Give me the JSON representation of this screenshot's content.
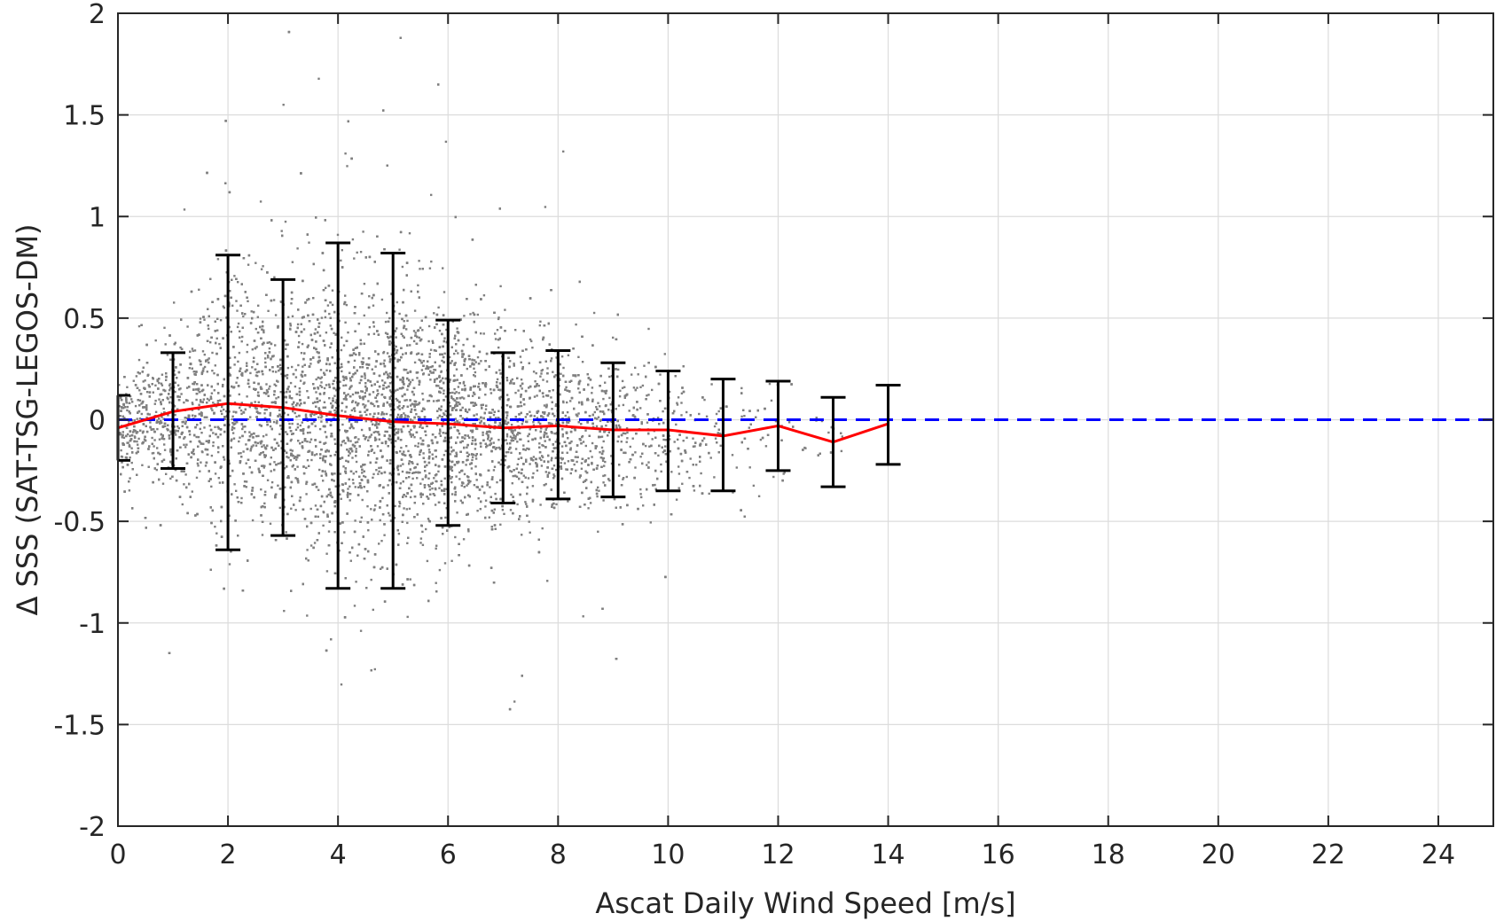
{
  "chart_data": {
    "type": "scatter",
    "title": "",
    "xlabel": "Ascat Daily Wind Speed [m/s]",
    "ylabel": "Δ SSS (SAT-TSG-LEGOS-DM)",
    "xlim": [
      0,
      25
    ],
    "ylim": [
      -2,
      2
    ],
    "xticks": [
      0,
      2,
      4,
      6,
      8,
      10,
      12,
      14,
      16,
      18,
      20,
      22,
      24
    ],
    "yticks": [
      -2,
      -1.5,
      -1,
      -0.5,
      0,
      0.5,
      1,
      1.5,
      2
    ],
    "xtick_labels": [
      "0",
      "2",
      "4",
      "6",
      "8",
      "10",
      "12",
      "14",
      "16",
      "18",
      "20",
      "22",
      "24"
    ],
    "ytick_labels": [
      "-2",
      "-1.5",
      "-1",
      "-0.5",
      "0",
      "0.5",
      "1",
      "1.5",
      "2"
    ],
    "grid": true,
    "reference_line": {
      "y": 0,
      "style": "dashed",
      "color": "#0000ff"
    },
    "scatter_color": "#808080",
    "scatter_density_envelope": {
      "x": [
        0,
        1,
        2,
        3,
        4,
        5,
        6,
        7,
        8,
        9,
        10,
        11,
        12,
        13,
        14
      ],
      "spread_sd": [
        0.12,
        0.18,
        0.3,
        0.3,
        0.33,
        0.33,
        0.28,
        0.22,
        0.21,
        0.19,
        0.17,
        0.16,
        0.13,
        0.1,
        0.08
      ]
    },
    "series": [
      {
        "style": "line",
        "color": "#ff0000",
        "x": [
          0,
          1,
          2,
          3,
          4,
          5,
          6,
          7,
          8,
          9,
          10,
          11,
          12,
          13,
          14
        ],
        "y": [
          -0.04,
          0.04,
          0.08,
          0.06,
          0.02,
          -0.01,
          -0.02,
          -0.04,
          -0.03,
          -0.05,
          -0.05,
          -0.08,
          -0.03,
          -0.11,
          -0.02
        ]
      },
      {
        "style": "errorbar",
        "color": "#000000",
        "x": [
          0,
          1,
          2,
          3,
          4,
          5,
          6,
          7,
          8,
          9,
          10,
          11,
          12,
          13,
          14
        ],
        "upper": [
          0.12,
          0.33,
          0.81,
          0.69,
          0.87,
          0.82,
          0.49,
          0.33,
          0.34,
          0.28,
          0.24,
          0.2,
          0.19,
          0.11,
          0.17
        ],
        "lower": [
          -0.2,
          -0.24,
          -0.64,
          -0.57,
          -0.83,
          -0.83,
          -0.52,
          -0.41,
          -0.39,
          -0.38,
          -0.35,
          -0.35,
          -0.25,
          -0.33,
          -0.22
        ]
      }
    ]
  }
}
